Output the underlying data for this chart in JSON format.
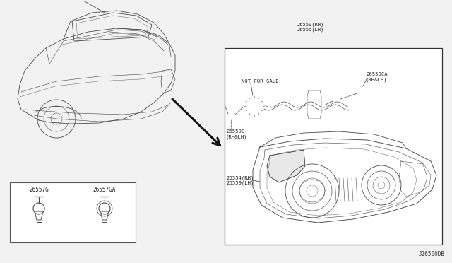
{
  "bg_color": "#f2f2f2",
  "diagram_bg": "#ffffff",
  "line_color": "#4a4a4a",
  "title_code": "J26500DB",
  "parts": {
    "lamp_assembly": "26550(RH)\n26555(LH)",
    "bulb_socket": "26550CA\n(RH&LH)",
    "connector": "26550C\n(RH&LH)",
    "inner_lens": "26554(RH)\n26559(LH)",
    "clip1": "26557G",
    "clip2": "26557GA",
    "not_for_sale": "NOT FOR SALE"
  }
}
